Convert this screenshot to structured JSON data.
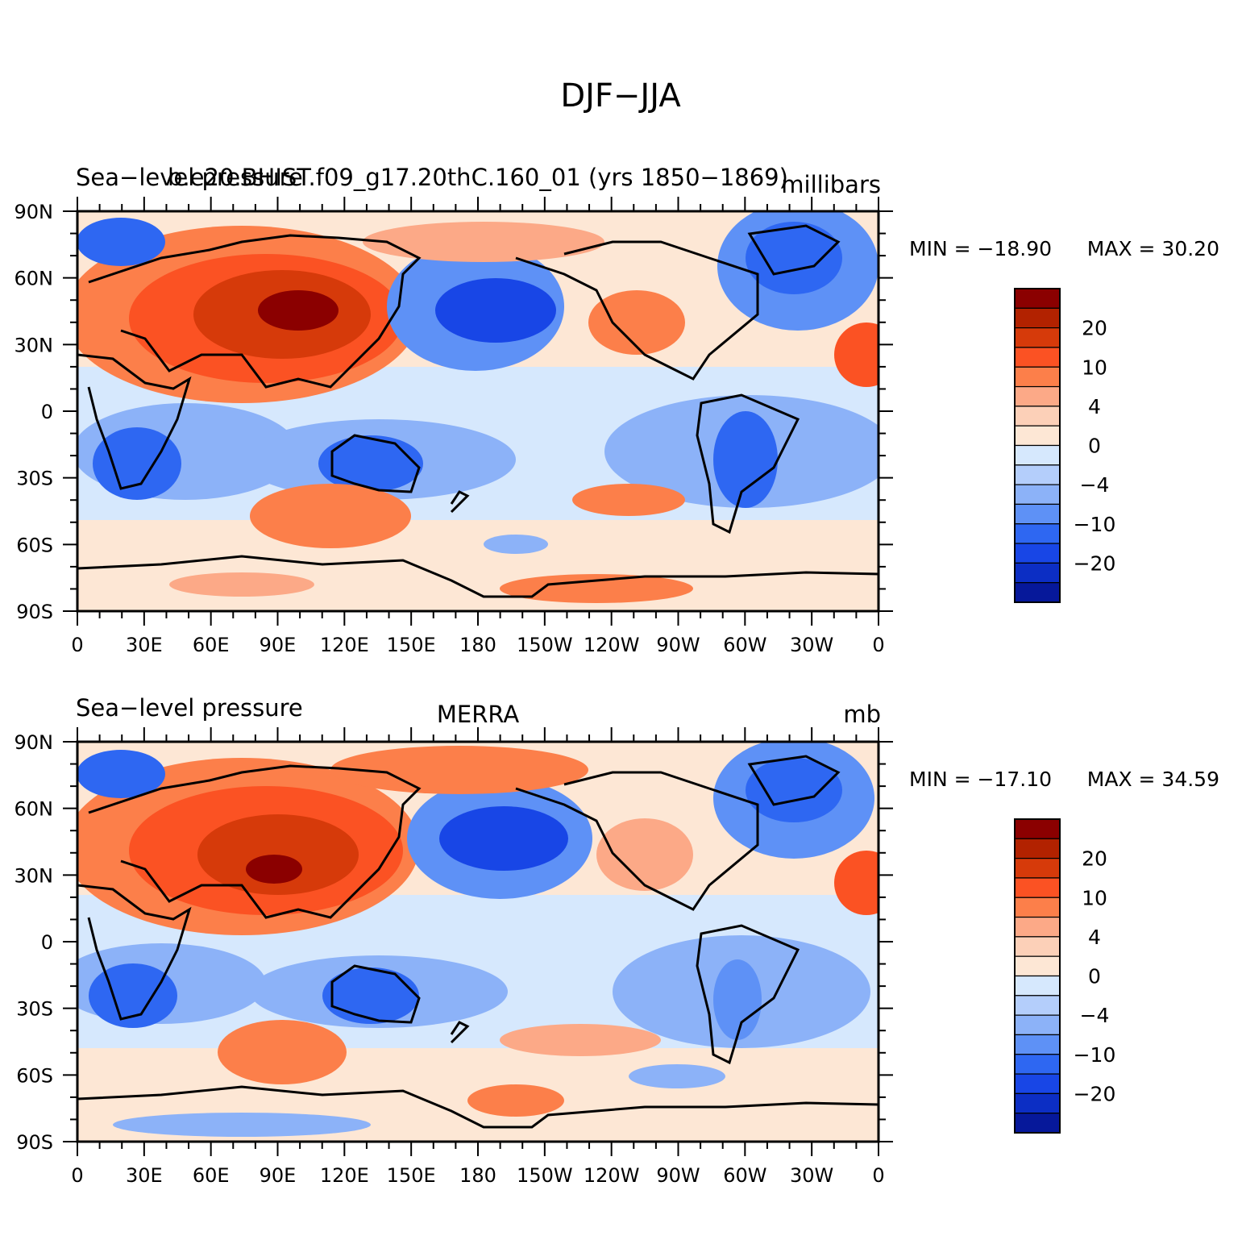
{
  "figure": {
    "title": "DJF-JJA"
  },
  "panels": [
    {
      "id": "model",
      "left_title": "Sea-level pressure",
      "center_title": "b.e20.BHIST.f09_g17.20thC.160_01 (yrs 1850-1869)",
      "right_title": "millibars",
      "min_label": "MIN = -18.90",
      "max_label": "MAX =   30.20",
      "min": -18.9,
      "max": 30.2
    },
    {
      "id": "obs",
      "left_title": "Sea-level pressure",
      "center_title": "MERRA",
      "right_title": "mb",
      "min_label": "MIN = -17.10",
      "max_label": "MAX =   34.59",
      "min": -17.1,
      "max": 34.59
    }
  ],
  "axes": {
    "x_ticks": [
      "0",
      "30E",
      "60E",
      "90E",
      "120E",
      "150E",
      "180",
      "150W",
      "120W",
      "90W",
      "60W",
      "30W",
      "0"
    ],
    "y_ticks": [
      "90N",
      "60N",
      "30N",
      "0",
      "30S",
      "60S",
      "90S"
    ]
  },
  "colorbar": {
    "colors": [
      "#8b0000",
      "#b22200",
      "#d63a0a",
      "#fb5223",
      "#fc7f4a",
      "#fca987",
      "#fcd0b8",
      "#fde7d5",
      "#d6e8fd",
      "#b4cefb",
      "#8cb2f8",
      "#5e91f6",
      "#2e67f2",
      "#1846e6",
      "#0c2ec4",
      "#06189a"
    ],
    "labels": [
      "20",
      "10",
      "4",
      "0",
      "-4",
      "-10",
      "-20"
    ]
  },
  "chart_data": {
    "type": "heatmap",
    "title": "DJF-JJA",
    "x": [
      "0",
      "30E",
      "60E",
      "90E",
      "120E",
      "150E",
      "180",
      "150W",
      "120W",
      "90W",
      "60W",
      "30W",
      "0"
    ],
    "y": [
      "90N",
      "60N",
      "30N",
      "0",
      "30S",
      "60S",
      "90S"
    ],
    "series": [
      {
        "name": "b.e20.BHIST.f09_g17.20thC.160_01 (yrs 1850-1869)",
        "min": -18.9,
        "max": 30.2
      },
      {
        "name": "MERRA",
        "min": -17.1,
        "max": 34.59
      }
    ],
    "colorbar_levels": [
      20,
      10,
      4,
      0,
      -4,
      -10,
      -20
    ]
  }
}
